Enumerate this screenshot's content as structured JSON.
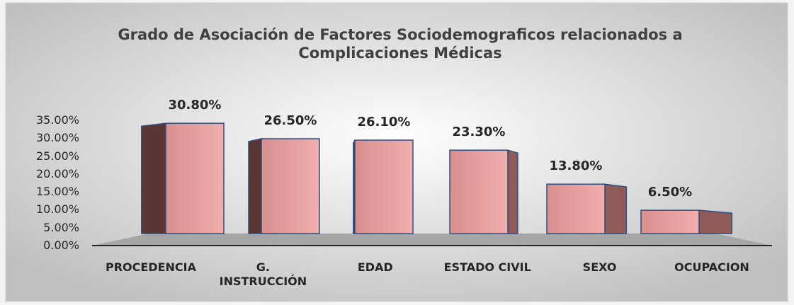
{
  "chart_data": {
    "type": "bar3d",
    "title": "Grado de Asociación de Factores Sociodemograficos relacionados a Complicaciones Médicas",
    "categories": [
      "PROCEDENCIA",
      "G. INSTRUCCIÓN",
      "EDAD",
      "ESTADO CIVIL",
      "SEXO",
      "OCUPACION"
    ],
    "values": [
      30.8,
      26.5,
      26.1,
      23.3,
      13.8,
      6.5
    ],
    "value_labels": [
      "30.80%",
      "26.50%",
      "26.10%",
      "23.30%",
      "13.80%",
      "6.50%"
    ],
    "color": "#e2a09e",
    "ylim": [
      0,
      35
    ],
    "yticks": [
      {
        "value": 0,
        "label": "0.00%"
      },
      {
        "value": 5,
        "label": "5.00%"
      },
      {
        "value": 10,
        "label": "10.00%"
      },
      {
        "value": 15,
        "label": "15.00%"
      },
      {
        "value": 20,
        "label": "20.00%"
      },
      {
        "value": 25,
        "label": "25.00%"
      },
      {
        "value": 30,
        "label": "30.00%"
      },
      {
        "value": 35,
        "label": "35.00%"
      }
    ]
  }
}
